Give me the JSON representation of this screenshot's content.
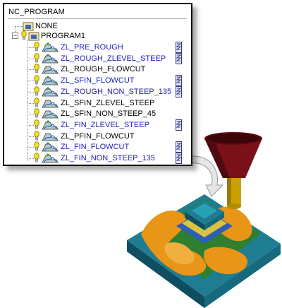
{
  "panel": {
    "title": "NC_PROGRAM",
    "none_label": "NONE",
    "program_label": "PROGRAM1",
    "operations": [
      {
        "label": "ZL_PRE_ROUGH",
        "style": "blue",
        "generated": true
      },
      {
        "label": "ZL_ROUGH_ZLEVEL_STEEP",
        "style": "blue",
        "generated": true
      },
      {
        "label": "ZL_ROUGH_FLOWCUT",
        "style": "black",
        "generated": false
      },
      {
        "label": "ZL_SFIN_FLOWCUT",
        "style": "blue",
        "generated": true
      },
      {
        "label": "ZL_ROUGH_NON_STEEP_135",
        "style": "blue",
        "generated": true
      },
      {
        "label": "ZL_SFIN_ZLEVEL_STEEP",
        "style": "black",
        "generated": false
      },
      {
        "label": "ZL_SFIN_NON_STEEP_45",
        "style": "black",
        "generated": false
      },
      {
        "label": "ZL_FIN_ZLEVEL_STEEP",
        "style": "blue",
        "generated": true
      },
      {
        "label": "ZL_PFIN_FLOWCUT",
        "style": "black",
        "generated": false
      },
      {
        "label": "ZL_FIN_FLOWCUT",
        "style": "blue",
        "generated": true
      },
      {
        "label": "ZL_FIN_NON_STEEP_135",
        "style": "blue",
        "generated": true
      }
    ]
  },
  "colors": {
    "blue_text": "#1e1eb8",
    "part_teal": "#1f7d92",
    "toolpath_orange": "#e89518",
    "tool_body": "#7a1018",
    "tool_shank": "#c9a100"
  },
  "icons": {
    "folder": "program-folder-icon",
    "operation": "operation-icon",
    "generated": "toolpath-generated-icon",
    "arrow": "curved-arrow-icon"
  }
}
